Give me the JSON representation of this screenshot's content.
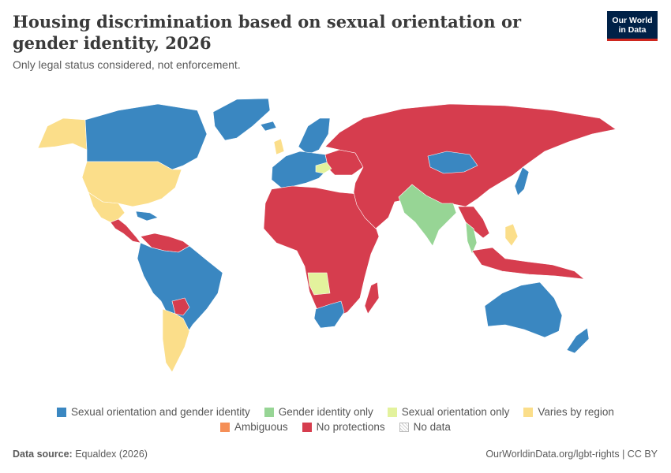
{
  "header": {
    "title": "Housing discrimination based on sexual orientation or gender identity, 2026",
    "subtitle": "Only legal status considered, not enforcement.",
    "logo_line1": "Our World",
    "logo_line2": "in Data"
  },
  "colors": {
    "sogi": "#3a87c1",
    "gender_identity": "#97d595",
    "sexual_orientation": "#e3f29d",
    "varies": "#fbde8a",
    "ambiguous": "#f58f57",
    "none": "#d63d4e",
    "nodata": "#ffffff"
  },
  "legend": [
    {
      "key": "sogi",
      "label": "Sexual orientation and gender identity"
    },
    {
      "key": "gender_identity",
      "label": "Gender identity only"
    },
    {
      "key": "sexual_orientation",
      "label": "Sexual orientation only"
    },
    {
      "key": "varies",
      "label": "Varies by region"
    },
    {
      "key": "ambiguous",
      "label": "Ambiguous"
    },
    {
      "key": "none",
      "label": "No protections"
    },
    {
      "key": "nodata",
      "label": "No data"
    }
  ],
  "footer": {
    "source_label": "Data source:",
    "source_value": "Equaldex (2026)",
    "credit": "OurWorldinData.org/lgbt-rights | CC BY"
  }
}
